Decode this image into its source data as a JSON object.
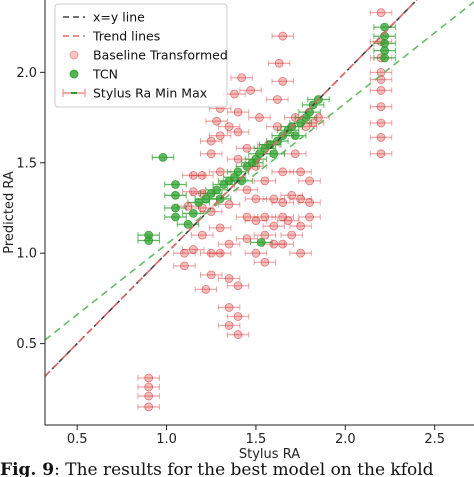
{
  "chart_data": {
    "type": "scatter",
    "title": "",
    "xlabel": "Stylus RA",
    "ylabel": "Predicted RA",
    "xlim": [
      0.32,
      2.72
    ],
    "ylim": [
      0.05,
      2.4
    ],
    "x_ticks": [
      "0.5",
      "1.0",
      "1.5",
      "2.0",
      "2.5"
    ],
    "y_ticks": [
      "0.5",
      "1.0",
      "1.5",
      "2.0"
    ],
    "grid": false,
    "legend_placement": "top-left",
    "legend": [
      {
        "label": "x=y line",
        "kind": "dashed-line",
        "color": "#444444"
      },
      {
        "label": "Trend lines",
        "kind": "dashed-line",
        "color": "#e06666"
      },
      {
        "label": "Baseline Transformed",
        "kind": "marker",
        "color": "#f28b8b"
      },
      {
        "label": "TCN",
        "kind": "marker",
        "color": "#2ca02c"
      },
      {
        "label": "Stylus Ra Min Max",
        "kind": "errorbar",
        "color": "#f28b8b"
      }
    ],
    "lines": {
      "identity": {
        "x": [
          0.32,
          2.4
        ],
        "y": [
          0.32,
          2.4
        ],
        "color": "#444444"
      },
      "trend_baseline": {
        "x": [
          0.32,
          2.4
        ],
        "y": [
          0.32,
          2.4
        ],
        "color": "#e06666"
      },
      "trend_tcn": {
        "x": [
          0.32,
          2.72
        ],
        "y": [
          0.52,
          2.39
        ],
        "color": "#66bb66"
      }
    },
    "series": [
      {
        "name": "Baseline Transformed",
        "color": "#d62728",
        "points": [
          [
            0.9,
            0.15
          ],
          [
            0.9,
            0.21
          ],
          [
            0.9,
            0.26
          ],
          [
            0.9,
            0.31
          ],
          [
            1.1,
            0.93
          ],
          [
            1.1,
            1.0
          ],
          [
            1.15,
            1.02
          ],
          [
            1.12,
            1.26
          ],
          [
            1.15,
            1.34
          ],
          [
            1.15,
            1.43
          ],
          [
            1.2,
            1.1
          ],
          [
            1.2,
            1.25
          ],
          [
            1.2,
            1.33
          ],
          [
            1.2,
            1.43
          ],
          [
            1.22,
            0.8
          ],
          [
            1.25,
            0.88
          ],
          [
            1.25,
            1.0
          ],
          [
            1.25,
            1.23
          ],
          [
            1.25,
            1.55
          ],
          [
            1.25,
            1.62
          ],
          [
            1.28,
            1.73
          ],
          [
            1.3,
            1.0
          ],
          [
            1.3,
            1.14
          ],
          [
            1.3,
            1.45
          ],
          [
            1.3,
            1.65
          ],
          [
            1.3,
            1.8
          ],
          [
            1.35,
            0.6
          ],
          [
            1.35,
            0.7
          ],
          [
            1.35,
            0.86
          ],
          [
            1.35,
            1.05
          ],
          [
            1.35,
            1.27
          ],
          [
            1.35,
            1.7
          ],
          [
            1.38,
            1.88
          ],
          [
            1.4,
            0.55
          ],
          [
            1.4,
            0.65
          ],
          [
            1.4,
            0.82
          ],
          [
            1.4,
            1.52
          ],
          [
            1.4,
            1.67
          ],
          [
            1.4,
            1.78
          ],
          [
            1.42,
            1.97
          ],
          [
            1.45,
            1.08
          ],
          [
            1.45,
            1.2
          ],
          [
            1.45,
            1.35
          ],
          [
            1.45,
            1.58
          ],
          [
            1.47,
            1.9
          ],
          [
            1.5,
            1.0
          ],
          [
            1.5,
            1.18
          ],
          [
            1.5,
            1.3
          ],
          [
            1.5,
            1.48
          ],
          [
            1.52,
            1.75
          ],
          [
            1.55,
            0.95
          ],
          [
            1.55,
            1.1
          ],
          [
            1.55,
            1.2
          ],
          [
            1.55,
            1.4
          ],
          [
            1.57,
            1.6
          ],
          [
            1.6,
            1.05
          ],
          [
            1.6,
            1.15
          ],
          [
            1.6,
            1.3
          ],
          [
            1.62,
            1.7
          ],
          [
            1.62,
            1.85
          ],
          [
            1.63,
            2.05
          ],
          [
            1.65,
            1.05
          ],
          [
            1.65,
            1.2
          ],
          [
            1.65,
            1.28
          ],
          [
            1.65,
            1.45
          ],
          [
            1.65,
            1.95
          ],
          [
            1.65,
            2.2
          ],
          [
            1.68,
            1.18
          ],
          [
            1.7,
            1.1
          ],
          [
            1.7,
            1.32
          ],
          [
            1.72,
            1.55
          ],
          [
            1.72,
            1.75
          ],
          [
            1.75,
            1.0
          ],
          [
            1.75,
            1.15
          ],
          [
            1.75,
            1.3
          ],
          [
            1.75,
            1.45
          ],
          [
            1.78,
            1.7
          ],
          [
            1.8,
            1.2
          ],
          [
            1.8,
            1.28
          ],
          [
            1.8,
            1.4
          ],
          [
            1.82,
            1.72
          ],
          [
            1.85,
            1.75
          ],
          [
            2.2,
            1.55
          ],
          [
            2.2,
            1.64
          ],
          [
            2.2,
            1.72
          ],
          [
            2.2,
            1.81
          ],
          [
            2.2,
            1.9
          ],
          [
            2.2,
            1.96
          ],
          [
            2.2,
            2.0
          ],
          [
            2.2,
            2.08
          ],
          [
            2.2,
            2.17
          ],
          [
            2.2,
            2.33
          ]
        ]
      },
      {
        "name": "TCN",
        "color": "#2ca02c",
        "points": [
          [
            0.9,
            1.07
          ],
          [
            0.9,
            1.1
          ],
          [
            0.98,
            1.53
          ],
          [
            1.05,
            1.2
          ],
          [
            1.05,
            1.25
          ],
          [
            1.05,
            1.32
          ],
          [
            1.05,
            1.38
          ],
          [
            1.12,
            1.16
          ],
          [
            1.15,
            1.22
          ],
          [
            1.18,
            1.28
          ],
          [
            1.22,
            1.3
          ],
          [
            1.25,
            1.33
          ],
          [
            1.28,
            1.35
          ],
          [
            1.3,
            1.3
          ],
          [
            1.32,
            1.38
          ],
          [
            1.35,
            1.4
          ],
          [
            1.38,
            1.42
          ],
          [
            1.4,
            1.45
          ],
          [
            1.42,
            1.4
          ],
          [
            1.45,
            1.48
          ],
          [
            1.48,
            1.5
          ],
          [
            1.5,
            1.52
          ],
          [
            1.52,
            1.55
          ],
          [
            1.53,
            1.06
          ],
          [
            1.55,
            1.58
          ],
          [
            1.58,
            1.6
          ],
          [
            1.6,
            1.55
          ],
          [
            1.62,
            1.62
          ],
          [
            1.65,
            1.65
          ],
          [
            1.68,
            1.68
          ],
          [
            1.7,
            1.7
          ],
          [
            1.72,
            1.65
          ],
          [
            1.75,
            1.72
          ],
          [
            1.78,
            1.75
          ],
          [
            1.8,
            1.78
          ],
          [
            1.82,
            1.82
          ],
          [
            1.85,
            1.85
          ],
          [
            2.22,
            2.08
          ],
          [
            2.22,
            2.12
          ],
          [
            2.22,
            2.16
          ],
          [
            2.22,
            2.2
          ],
          [
            2.22,
            2.25
          ]
        ]
      }
    ]
  },
  "caption": {
    "label": "Fig. 9",
    "text": ": The results for the best model on the kfold"
  }
}
